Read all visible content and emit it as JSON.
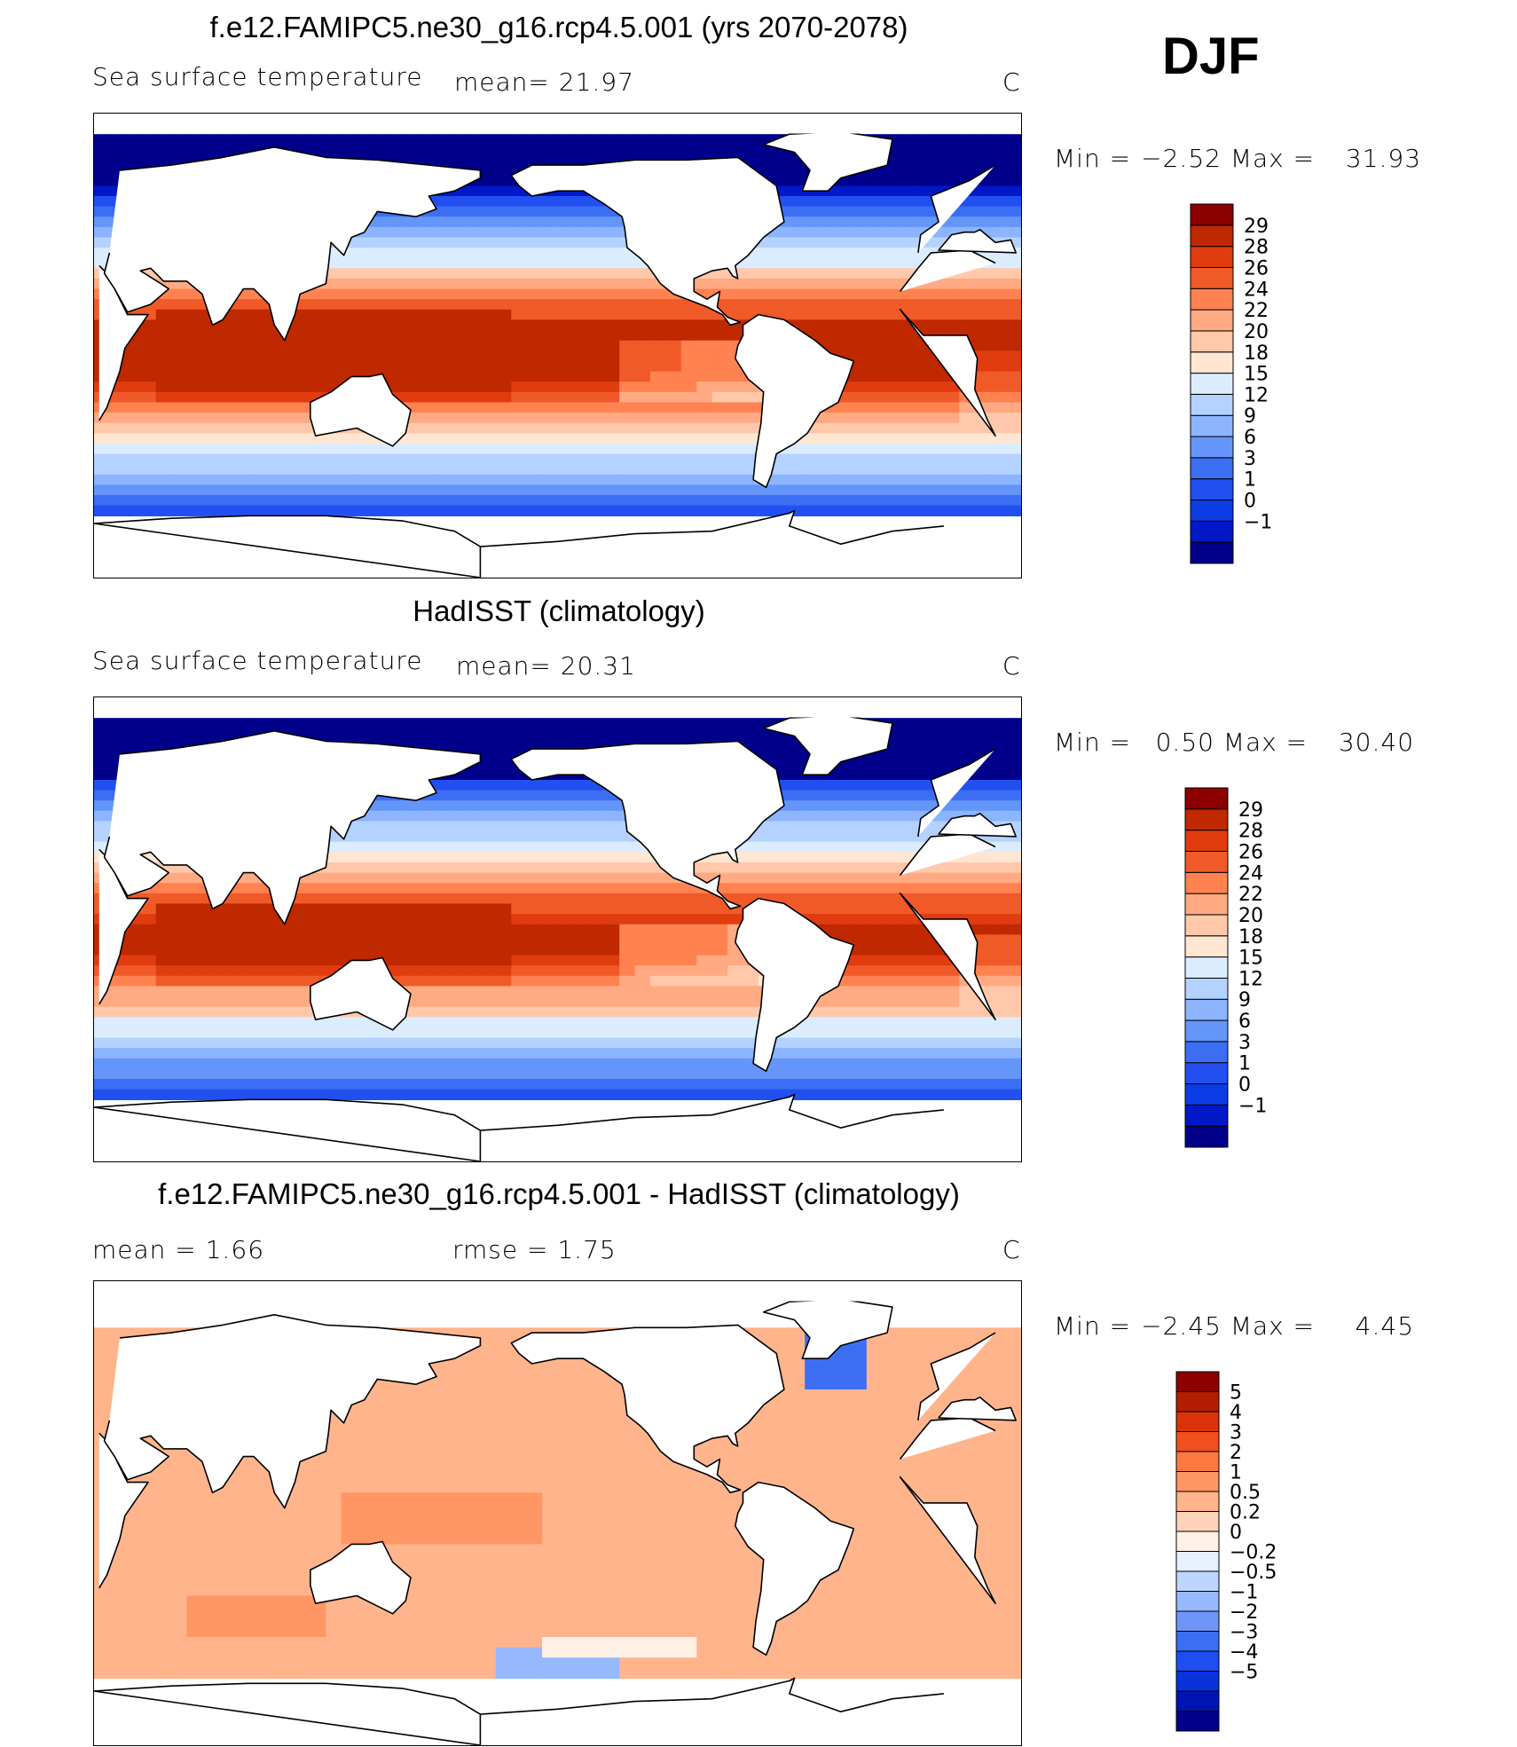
{
  "season": "DJF",
  "panels": [
    {
      "title": "f.e12.FAMIPC5.ne30_g16.rcp4.5.001 (yrs 2070-2078)",
      "subtitle_left": "Sea surface temperature",
      "stat1": "mean=   21.97",
      "stat2": "",
      "units": "C",
      "min_label": "Min =",
      "min_value": "−2.52",
      "max_label": "Max =",
      "max_value": "31.93",
      "type": "abs",
      "cbar_colors": [
        "#00008b",
        "#0018c8",
        "#0c3ce6",
        "#2250f0",
        "#3c6ef4",
        "#6496fa",
        "#8cb4ff",
        "#b4d2ff",
        "#dcecff",
        "#ffe6d2",
        "#ffc8aa",
        "#ffaa82",
        "#ff8250",
        "#f05a28",
        "#e03c10",
        "#c02800",
        "#8c0000"
      ],
      "cbar_labels": [
        "29",
        "28",
        "26",
        "24",
        "22",
        "20",
        "18",
        "15",
        "12",
        "9",
        "6",
        "3",
        "1",
        "0",
        "−1"
      ]
    },
    {
      "title": "HadISST (climatology)",
      "subtitle_left": "Sea surface temperature",
      "stat1": "mean=   20.31",
      "stat2": "",
      "units": "C",
      "min_label": "Min =",
      "min_value": "0.50",
      "max_label": "Max =",
      "max_value": "30.40",
      "type": "abs",
      "cbar_colors": [
        "#00008b",
        "#0018c8",
        "#0c3ce6",
        "#2250f0",
        "#3c6ef4",
        "#6496fa",
        "#8cb4ff",
        "#b4d2ff",
        "#dcecff",
        "#ffe6d2",
        "#ffc8aa",
        "#ffaa82",
        "#ff8250",
        "#f05a28",
        "#e03c10",
        "#c02800",
        "#8c0000"
      ],
      "cbar_labels": [
        "29",
        "28",
        "26",
        "24",
        "22",
        "20",
        "18",
        "15",
        "12",
        "9",
        "6",
        "3",
        "1",
        "0",
        "−1"
      ]
    },
    {
      "title": "f.e12.FAMIPC5.ne30_g16.rcp4.5.001 - HadISST (climatology)",
      "subtitle_left": "mean =    1.66",
      "stat1": "",
      "stat2": "rmse =    1.75",
      "units": "C",
      "min_label": "Min =",
      "min_value": "−2.45",
      "max_label": "Max =",
      "max_value": "4.45",
      "type": "diff",
      "cbar_colors": [
        "#00008b",
        "#0014b4",
        "#0a32dc",
        "#1e4ef0",
        "#3c6ef4",
        "#6e96fa",
        "#96b8ff",
        "#bed6ff",
        "#e6f0ff",
        "#fff0e6",
        "#ffd2b9",
        "#ffb48c",
        "#ff9664",
        "#ff7841",
        "#f0501e",
        "#dc320a",
        "#b41e00",
        "#8c0000"
      ],
      "cbar_labels": [
        "5",
        "4",
        "3",
        "2",
        "1",
        "0.5",
        "0.2",
        "0",
        "−0.2",
        "−0.5",
        "−1",
        "−2",
        "−3",
        "−4",
        "−5"
      ]
    }
  ],
  "chart_data": [
    {
      "type": "heatmap",
      "title": "f.e12.FAMIPC5.ne30_g16.rcp4.5.001 (yrs 2070-2078)",
      "variable": "Sea surface temperature",
      "units": "C",
      "season": "DJF",
      "mean": 21.97,
      "min": -2.52,
      "max": 31.93,
      "contour_levels": [
        -1,
        0,
        1,
        3,
        6,
        9,
        12,
        15,
        18,
        20,
        22,
        24,
        26,
        28,
        29
      ]
    },
    {
      "type": "heatmap",
      "title": "HadISST (climatology)",
      "variable": "Sea surface temperature",
      "units": "C",
      "season": "DJF",
      "mean": 20.31,
      "min": 0.5,
      "max": 30.4,
      "contour_levels": [
        -1,
        0,
        1,
        3,
        6,
        9,
        12,
        15,
        18,
        20,
        22,
        24,
        26,
        28,
        29
      ]
    },
    {
      "type": "heatmap",
      "title": "f.e12.FAMIPC5.ne30_g16.rcp4.5.001 - HadISST (climatology)",
      "units": "C",
      "season": "DJF",
      "mean": 1.66,
      "rmse": 1.75,
      "min": -2.45,
      "max": 4.45,
      "contour_levels": [
        -5,
        -4,
        -3,
        -2,
        -1,
        -0.5,
        -0.2,
        0,
        0.2,
        0.5,
        1,
        2,
        3,
        4,
        5
      ]
    }
  ]
}
